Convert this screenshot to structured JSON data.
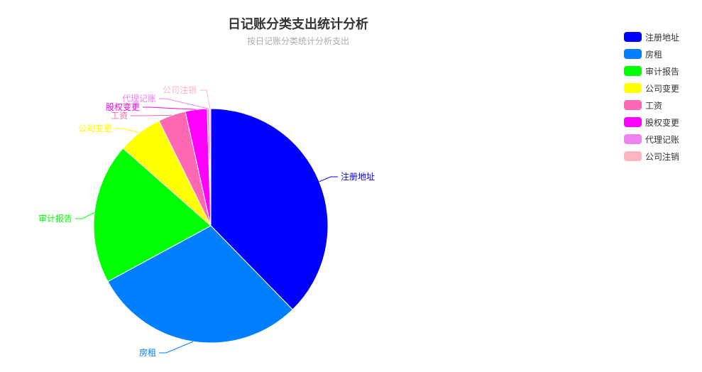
{
  "chart_data": {
    "type": "pie",
    "title": "日记账分类支出统计分析",
    "subtitle": "按日记账分类统计分析支出",
    "legend_position": "top-right",
    "slices": [
      {
        "name": "注册地址",
        "value": 37.7,
        "color": "#0000ff"
      },
      {
        "name": "房租",
        "value": 29.4,
        "color": "#0080ff"
      },
      {
        "name": "审计报告",
        "value": 19.4,
        "color": "#00ff00"
      },
      {
        "name": "公司变更",
        "value": 6.2,
        "color": "#ffff00"
      },
      {
        "name": "工资",
        "value": 3.8,
        "color": "#ff69b4"
      },
      {
        "name": "股权变更",
        "value": 3.0,
        "color": "#ff00ff"
      },
      {
        "name": "代理记账",
        "value": 0.3,
        "color": "#ee82ee"
      },
      {
        "name": "公司注销",
        "value": 0.2,
        "color": "#ffb6c1"
      }
    ]
  }
}
